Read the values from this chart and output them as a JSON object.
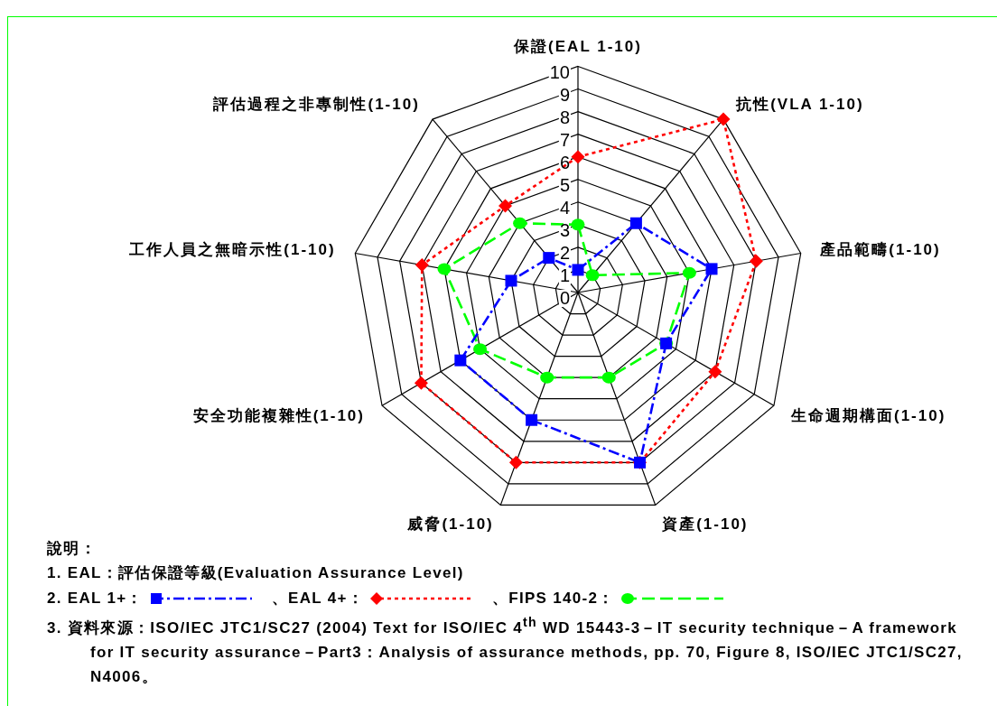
{
  "chart_data": {
    "type": "radar",
    "categories": [
      "保證(EAL 1-10)",
      "抗性(VLA 1-10)",
      "產品範疇(1-10)",
      "生命週期構面(1-10)",
      "資產(1-10)",
      "威脅(1-10)",
      "安全功能複雜性(1-10)",
      "工作人員之無暗示性(1-10)",
      "評估過程之非專制性(1-10)"
    ],
    "series": [
      {
        "name": "EAL 1+：",
        "color": "#0000ff",
        "marker": "square",
        "line_style": "dashdot",
        "values": [
          1,
          4,
          6,
          4.5,
          8,
          6,
          6,
          3,
          2
        ]
      },
      {
        "name": "、EAL 4+：",
        "color": "#ff0000",
        "marker": "diamond",
        "line_style": "dotted",
        "values": [
          6,
          10,
          8,
          7,
          8,
          8,
          8,
          7,
          5
        ]
      },
      {
        "name": "、FIPS 140-2：",
        "color": "#00ff00",
        "marker": "circle",
        "line_style": "dashed",
        "values": [
          3,
          1,
          5,
          4.5,
          4,
          4,
          5,
          6,
          4
        ]
      }
    ],
    "ylim": [
      0,
      10
    ],
    "yticks": [
      0,
      1,
      2,
      3,
      4,
      5,
      6,
      7,
      8,
      9,
      10
    ],
    "grid": true,
    "legend": "bottom",
    "legend_title": "2.",
    "annotations": [
      "說明：",
      "1. EAL：評估保證等級(Evaluation Assurance Level)",
      "3. 資料來源：ISO/IEC JTC1/SC27 (2004) Text for ISO/IEC 4$^{th}$ WD 15443-3－IT security technique－A  framework for IT security assurance－Part3：Analysis of assurance methods, pp. 70, Figure 8, ISO/IEC JTC1/SC27, N4006。"
    ]
  }
}
